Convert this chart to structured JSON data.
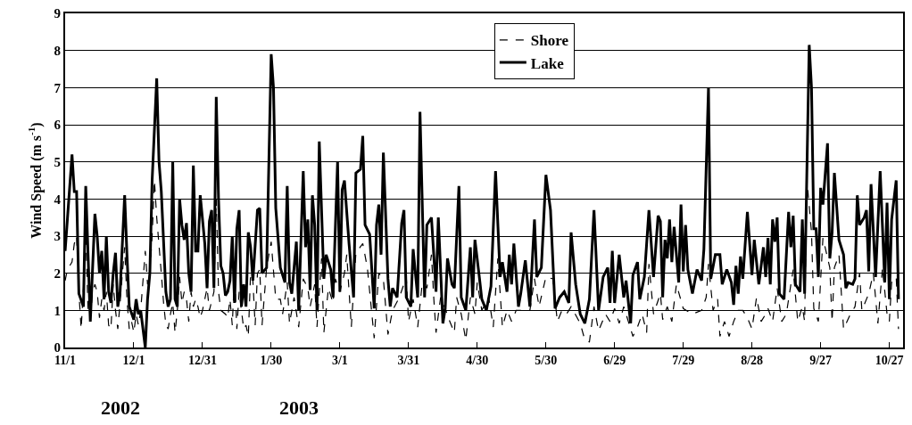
{
  "chart_data": {
    "type": "line",
    "ylabel": "Wind Speed (m s$^{-1}$)",
    "xlim": [
      "2002-11-01",
      "2003-11-02"
    ],
    "xticks": [
      {
        "value": "2002-11-01",
        "label": "11/1"
      },
      {
        "value": "2002-12-01",
        "label": "12/1"
      },
      {
        "value": "2002-12-31",
        "label": "12/31"
      },
      {
        "value": "2003-01-30",
        "label": "1/30"
      },
      {
        "value": "2003-03-01",
        "label": "3/1"
      },
      {
        "value": "2003-03-31",
        "label": "3/31"
      },
      {
        "value": "2003-04-30",
        "label": "4/30"
      },
      {
        "value": "2003-05-30",
        "label": "5/30"
      },
      {
        "value": "2003-06-29",
        "label": "6/29"
      },
      {
        "value": "2003-07-29",
        "label": "7/29"
      },
      {
        "value": "2003-08-28",
        "label": "8/28"
      },
      {
        "value": "2003-09-27",
        "label": "9/27"
      },
      {
        "value": "2003-10-27",
        "label": "10/27"
      }
    ],
    "ylim": [
      0,
      9
    ],
    "yticks": [
      0,
      1,
      2,
      3,
      4,
      5,
      6,
      7,
      8,
      9
    ],
    "grid": "y",
    "legend": "top",
    "marker": "none",
    "annotations": [
      "2002",
      "2003"
    ],
    "series": [
      {
        "name": "Shore",
        "color": "#000000",
        "line_style": "dashed",
        "x": [
          "2002-11-01",
          "2002-11-02",
          "2002-11-04",
          "2002-11-05",
          "2002-11-06",
          "2002-11-07",
          "2002-11-08",
          "2002-11-09",
          "2002-11-10",
          "2002-11-11",
          "2002-11-12",
          "2002-11-13",
          "2002-11-14",
          "2002-11-15",
          "2002-11-16",
          "2002-11-17",
          "2002-11-18",
          "2002-11-19",
          "2002-11-20",
          "2002-11-21",
          "2002-11-22",
          "2002-11-23",
          "2002-11-24",
          "2002-11-25",
          "2002-11-26",
          "2002-11-27",
          "2002-11-28",
          "2002-11-29",
          "2002-11-30",
          "2002-12-01",
          "2002-12-02",
          "2002-12-03",
          "2002-12-04",
          "2002-12-06",
          "2002-12-07",
          "2002-12-08",
          "2002-12-09",
          "2002-12-10",
          "2002-12-11",
          "2002-12-13",
          "2002-12-14",
          "2002-12-15",
          "2002-12-16",
          "2002-12-17",
          "2002-12-18",
          "2002-12-19",
          "2002-12-20",
          "2002-12-21",
          "2002-12-22",
          "2002-12-23",
          "2002-12-24",
          "2002-12-25",
          "2002-12-26",
          "2002-12-27",
          "2002-12-28",
          "2002-12-29",
          "2002-12-30",
          "2002-12-31",
          "2003-01-01",
          "2003-01-02",
          "2003-01-03",
          "2003-01-05",
          "2003-01-06",
          "2003-01-07",
          "2003-01-08",
          "2003-01-10",
          "2003-01-11",
          "2003-01-12",
          "2003-01-13",
          "2003-01-14",
          "2003-01-15",
          "2003-01-16",
          "2003-01-17",
          "2003-01-18",
          "2003-01-19",
          "2003-01-20",
          "2003-01-21",
          "2003-01-22",
          "2003-01-23",
          "2003-01-24",
          "2003-01-25",
          "2003-01-26",
          "2003-01-28",
          "2003-01-30",
          "2003-02-01",
          "2003-02-03",
          "2003-02-04",
          "2003-02-06",
          "2003-02-07",
          "2003-02-09",
          "2003-02-11",
          "2003-02-13",
          "2003-02-15",
          "2003-02-16",
          "2003-02-18",
          "2003-02-19",
          "2003-02-21",
          "2003-02-22",
          "2003-02-24",
          "2003-02-26",
          "2003-02-27",
          "2003-03-01",
          "2003-03-03",
          "2003-03-04",
          "2003-03-06",
          "2003-03-08",
          "2003-03-11",
          "2003-03-13",
          "2003-03-16",
          "2003-03-18",
          "2003-03-20",
          "2003-03-22",
          "2003-03-24",
          "2003-03-27",
          "2003-03-30",
          "2003-03-31",
          "2003-04-02",
          "2003-04-04",
          "2003-04-06",
          "2003-04-08",
          "2003-04-10",
          "2003-04-11",
          "2003-04-12",
          "2003-04-14",
          "2003-04-16",
          "2003-04-18",
          "2003-04-20",
          "2003-04-21",
          "2003-04-23",
          "2003-04-25",
          "2003-04-27",
          "2003-04-29",
          "2003-04-30",
          "2003-05-02",
          "2003-05-05",
          "2003-05-07",
          "2003-05-09",
          "2003-05-11",
          "2003-05-13",
          "2003-05-15",
          "2003-05-17",
          "2003-05-19",
          "2003-05-23",
          "2003-05-25",
          "2003-05-27",
          "2003-05-30",
          "2003-06-02",
          "2003-06-04",
          "2003-06-06",
          "2003-06-08",
          "2003-06-10",
          "2003-06-14",
          "2003-06-16",
          "2003-06-18",
          "2003-06-20",
          "2003-06-22",
          "2003-06-25",
          "2003-06-27",
          "2003-06-29",
          "2003-07-01",
          "2003-07-03",
          "2003-07-05",
          "2003-07-07",
          "2003-07-09",
          "2003-07-11",
          "2003-07-13",
          "2003-07-14",
          "2003-07-16",
          "2003-07-19",
          "2003-07-20",
          "2003-07-22",
          "2003-07-24",
          "2003-07-26",
          "2003-07-29",
          "2003-08-02",
          "2003-08-06",
          "2003-08-08",
          "2003-08-09",
          "2003-08-11",
          "2003-08-13",
          "2003-08-14",
          "2003-08-16",
          "2003-08-18",
          "2003-08-20",
          "2003-08-22",
          "2003-08-24",
          "2003-08-26",
          "2003-08-28",
          "2003-08-30",
          "2003-09-01",
          "2003-09-03",
          "2003-09-04",
          "2003-09-06",
          "2003-09-08",
          "2003-09-10",
          "2003-09-12",
          "2003-09-15",
          "2003-09-17",
          "2003-09-19",
          "2003-09-20",
          "2003-09-21",
          "2003-09-23",
          "2003-09-24",
          "2003-09-26",
          "2003-09-28",
          "2003-10-01",
          "2003-10-02",
          "2003-10-03",
          "2003-10-05",
          "2003-10-07",
          "2003-10-10",
          "2003-10-12",
          "2003-10-14",
          "2003-10-15",
          "2003-10-18",
          "2003-10-20",
          "2003-10-22",
          "2003-10-24",
          "2003-10-26",
          "2003-10-27",
          "2003-10-28",
          "2003-10-30",
          "2003-10-31"
        ],
        "values": [
          1.8,
          2.1,
          2.3,
          2.8,
          3.0,
          1.5,
          0.5,
          1.6,
          3.1,
          1.0,
          0.8,
          1.5,
          1.7,
          1.5,
          0.8,
          1.3,
          1.0,
          1.5,
          0.6,
          0.5,
          1.7,
          1.0,
          0.5,
          1.2,
          2.0,
          2.7,
          1.3,
          0.5,
          0.7,
          0.4,
          0.9,
          0.6,
          1.0,
          2.6,
          1.7,
          2.0,
          3.0,
          4.5,
          3.5,
          2.0,
          1.2,
          0.6,
          0.5,
          0.9,
          1.2,
          0.4,
          1.0,
          1.9,
          1.2,
          1.5,
          1.3,
          0.7,
          1.5,
          1.1,
          1.3,
          1.1,
          0.8,
          1.0,
          1.3,
          1.6,
          1.0,
          1.5,
          4.0,
          1.5,
          1.0,
          0.9,
          0.8,
          1.3,
          0.6,
          2.0,
          0.5,
          1.5,
          1.0,
          0.5,
          0.6,
          0.3,
          2.0,
          1.8,
          0.6,
          2.0,
          2.1,
          0.6,
          2.15,
          2.85,
          1.3,
          1.3,
          0.9,
          1.75,
          0.65,
          1.35,
          0.55,
          1.85,
          1.6,
          1.1,
          1.7,
          0.55,
          2.4,
          0.4,
          1.6,
          1.2,
          1.85,
          1.5,
          2.0,
          2.5,
          0.55,
          2.55,
          2.8,
          2.15,
          0.25,
          2.0,
          1.85,
          0.35,
          1.0,
          1.35,
          1.9,
          0.7,
          1.3,
          0.55,
          1.75,
          1.6,
          2.5,
          1.35,
          0.4,
          1.35,
          1.05,
          0.7,
          0.4,
          1.35,
          0.9,
          0.2,
          1.35,
          0.9,
          1.75,
          1.0,
          1.35,
          0.55,
          2.4,
          0.55,
          1.0,
          0.7,
          1.0,
          1.0,
          1.0,
          1.85,
          1.1,
          1.9,
          1.85,
          0.7,
          1.0,
          0.9,
          1.1,
          0.65,
          0.2,
          0.15,
          1.1,
          0.45,
          0.9,
          0.7,
          1.05,
          0.65,
          1.1,
          0.7,
          0.3,
          0.55,
          0.9,
          0.4,
          2.25,
          0.9,
          1.45,
          0.75,
          1.1,
          0.7,
          1.7,
          1.05,
          0.9,
          1.0,
          1.35,
          2.25,
          1.0,
          1.3,
          0.3,
          0.7,
          0.3,
          0.7,
          1.0,
          1.0,
          0.8,
          0.5,
          1.35,
          0.7,
          0.9,
          1.05,
          0.7,
          1.6,
          0.7,
          0.9,
          2.1,
          0.7,
          1.1,
          0.7,
          4.5,
          3.1,
          1.05,
          0.7,
          2.95,
          2.15,
          0.7,
          2.15,
          2.5,
          0.5,
          0.9,
          1.1,
          2.0,
          1.0,
          1.45,
          2.0,
          0.65,
          2.15,
          0.9,
          0.7,
          1.75,
          1.9,
          0.5
        ]
      },
      {
        "name": "Lake",
        "color": "#000000",
        "line_style": "solid",
        "x": [
          "2002-11-01",
          "2002-11-04",
          "2002-11-05",
          "2002-11-06",
          "2002-11-07",
          "2002-11-09",
          "2002-11-10",
          "2002-11-12",
          "2002-11-14",
          "2002-11-15",
          "2002-11-16",
          "2002-11-17",
          "2002-11-18",
          "2002-11-19",
          "2002-11-20",
          "2002-11-21",
          "2002-11-22",
          "2002-11-23",
          "2002-11-24",
          "2002-11-25",
          "2002-11-27",
          "2002-11-28",
          "2002-11-29",
          "2002-12-01",
          "2002-12-02",
          "2002-12-03",
          "2002-12-04",
          "2002-12-06",
          "2002-12-07",
          "2002-12-08",
          "2002-12-09",
          "2002-12-11",
          "2002-12-12",
          "2002-12-13",
          "2002-12-15",
          "2002-12-16",
          "2002-12-17",
          "2002-12-18",
          "2002-12-19",
          "2002-12-20",
          "2002-12-21",
          "2002-12-22",
          "2002-12-23",
          "2002-12-24",
          "2002-12-25",
          "2002-12-26",
          "2002-12-27",
          "2002-12-28",
          "2002-12-29",
          "2002-12-30",
          "2003-01-01",
          "2003-01-02",
          "2003-01-03",
          "2003-01-04",
          "2003-01-05",
          "2003-01-06",
          "2003-01-07",
          "2003-01-08",
          "2003-01-09",
          "2003-01-10",
          "2003-01-11",
          "2003-01-12",
          "2003-01-13",
          "2003-01-14",
          "2003-01-15",
          "2003-01-16",
          "2003-01-17",
          "2003-01-18",
          "2003-01-19",
          "2003-01-20",
          "2003-01-21",
          "2003-01-22",
          "2003-01-24",
          "2003-01-25",
          "2003-01-26",
          "2003-01-28",
          "2003-01-30",
          "2003-01-31",
          "2003-02-01",
          "2003-02-03",
          "2003-02-05",
          "2003-02-06",
          "2003-02-07",
          "2003-02-08",
          "2003-02-10",
          "2003-02-11",
          "2003-02-13",
          "2003-02-14",
          "2003-02-15",
          "2003-02-16",
          "2003-02-17",
          "2003-02-18",
          "2003-02-19",
          "2003-02-20",
          "2003-02-22",
          "2003-02-23",
          "2003-02-25",
          "2003-02-26",
          "2003-02-28",
          "2003-03-01",
          "2003-03-02",
          "2003-03-03",
          "2003-03-05",
          "2003-03-07",
          "2003-03-08",
          "2003-03-10",
          "2003-03-11",
          "2003-03-12",
          "2003-03-14",
          "2003-03-16",
          "2003-03-17",
          "2003-03-18",
          "2003-03-19",
          "2003-03-20",
          "2003-03-22",
          "2003-03-23",
          "2003-03-24",
          "2003-03-26",
          "2003-03-28",
          "2003-03-29",
          "2003-03-30",
          "2003-04-01",
          "2003-04-02",
          "2003-04-04",
          "2003-04-05",
          "2003-04-07",
          "2003-04-08",
          "2003-04-10",
          "2003-04-12",
          "2003-04-13",
          "2003-04-15",
          "2003-04-16",
          "2003-04-17",
          "2003-04-19",
          "2003-04-20",
          "2003-04-22",
          "2003-04-23",
          "2003-04-25",
          "2003-04-27",
          "2003-04-28",
          "2003-04-29",
          "2003-05-01",
          "2003-05-02",
          "2003-05-04",
          "2003-05-06",
          "2003-05-08",
          "2003-05-10",
          "2003-05-11",
          "2003-05-13",
          "2003-05-14",
          "2003-05-15",
          "2003-05-16",
          "2003-05-18",
          "2003-05-19",
          "2003-05-21",
          "2003-05-23",
          "2003-05-25",
          "2003-05-26",
          "2003-05-28",
          "2003-05-30",
          "2003-06-01",
          "2003-06-03",
          "2003-06-05",
          "2003-06-07",
          "2003-06-09",
          "2003-06-10",
          "2003-06-12",
          "2003-06-14",
          "2003-06-16",
          "2003-06-18",
          "2003-06-20",
          "2003-06-22",
          "2003-06-24",
          "2003-06-26",
          "2003-06-27",
          "2003-06-28",
          "2003-06-29",
          "2003-07-01",
          "2003-07-03",
          "2003-07-04",
          "2003-07-06",
          "2003-07-07",
          "2003-07-09",
          "2003-07-10",
          "2003-07-12",
          "2003-07-14",
          "2003-07-16",
          "2003-07-18",
          "2003-07-19",
          "2003-07-20",
          "2003-07-21",
          "2003-07-22",
          "2003-07-23",
          "2003-07-24",
          "2003-07-25",
          "2003-07-27",
          "2003-07-28",
          "2003-07-29",
          "2003-07-30",
          "2003-07-31",
          "2003-08-02",
          "2003-08-04",
          "2003-08-06",
          "2003-08-07",
          "2003-08-09",
          "2003-08-10",
          "2003-08-12",
          "2003-08-14",
          "2003-08-15",
          "2003-08-17",
          "2003-08-19",
          "2003-08-20",
          "2003-08-21",
          "2003-08-22",
          "2003-08-23",
          "2003-08-24",
          "2003-08-26",
          "2003-08-28",
          "2003-08-29",
          "2003-08-30",
          "2003-08-31",
          "2003-09-02",
          "2003-09-03",
          "2003-09-04",
          "2003-09-05",
          "2003-09-06",
          "2003-09-07",
          "2003-09-08",
          "2003-09-09",
          "2003-09-11",
          "2003-09-13",
          "2003-09-14",
          "2003-09-15",
          "2003-09-16",
          "2003-09-18",
          "2003-09-19",
          "2003-09-20",
          "2003-09-22",
          "2003-09-23",
          "2003-09-24",
          "2003-09-25",
          "2003-09-26",
          "2003-09-27",
          "2003-09-28",
          "2003-09-30",
          "2003-10-01",
          "2003-10-02",
          "2003-10-03",
          "2003-10-05",
          "2003-10-07",
          "2003-10-08",
          "2003-10-09",
          "2003-10-11",
          "2003-10-12",
          "2003-10-13",
          "2003-10-14",
          "2003-10-16",
          "2003-10-17",
          "2003-10-18",
          "2003-10-19",
          "2003-10-21",
          "2003-10-23",
          "2003-10-25",
          "2003-10-26",
          "2003-10-27",
          "2003-10-28",
          "2003-10-30",
          "2003-10-31"
        ],
        "values": [
          2.6,
          5.2,
          4.2,
          4.2,
          1.45,
          1.1,
          4.35,
          0.7,
          3.6,
          3.0,
          2.0,
          2.6,
          1.3,
          3.0,
          1.5,
          1.2,
          2.0,
          2.55,
          1.1,
          1.5,
          4.1,
          2.5,
          1.1,
          0.75,
          1.3,
          0.9,
          1.0,
          0,
          1.3,
          2.0,
          4.5,
          7.25,
          5.0,
          4.2,
          1.5,
          1.1,
          1.3,
          5.0,
          1.3,
          1.1,
          4.0,
          3.3,
          2.9,
          3.35,
          2.0,
          1.5,
          4.9,
          2.6,
          2.6,
          4.1,
          2.8,
          1.6,
          3.4,
          3.7,
          1.6,
          6.75,
          4.0,
          2.2,
          2.0,
          1.4,
          1.5,
          1.8,
          3.0,
          1.2,
          3.2,
          3.7,
          1.1,
          1.7,
          1.1,
          3.1,
          2.7,
          1.8,
          3.7,
          3.75,
          2.0,
          2.15,
          7.9,
          7.0,
          3.75,
          2.15,
          1.75,
          4.35,
          1.75,
          1.45,
          2.85,
          1.0,
          4.75,
          2.7,
          3.45,
          1.55,
          4.1,
          3.3,
          1.0,
          5.55,
          1.85,
          2.5,
          2.1,
          1.35,
          5.0,
          1.5,
          4.25,
          4.5,
          2.8,
          1.35,
          4.7,
          4.8,
          5.7,
          3.3,
          3.05,
          1.05,
          3.3,
          3.85,
          2.5,
          5.25,
          1.85,
          1.1,
          1.6,
          1.35,
          3.35,
          3.7,
          1.35,
          1.1,
          2.65,
          1.35,
          6.35,
          1.35,
          3.3,
          3.5,
          1.5,
          3.5,
          0.65,
          1.05,
          2.4,
          1.7,
          1.6,
          4.35,
          1.35,
          1.0,
          2.7,
          1.35,
          2.9,
          1.85,
          1.3,
          1.0,
          1.65,
          4.75,
          1.9,
          2.3,
          1.5,
          2.5,
          1.7,
          2.8,
          1.1,
          1.45,
          2.35,
          1.1,
          3.45,
          1.9,
          2.15,
          4.65,
          3.7,
          1.05,
          1.35,
          1.5,
          1.2,
          3.1,
          1.7,
          0.9,
          0.65,
          1.3,
          3.7,
          1.0,
          1.9,
          2.15,
          1.2,
          2.6,
          1.2,
          2.5,
          1.35,
          1.8,
          0.65,
          1.95,
          2.3,
          1.3,
          1.9,
          3.7,
          1.9,
          3.55,
          3.4,
          1.35,
          2.9,
          2.4,
          3.45,
          2.3,
          3.25,
          1.75,
          3.85,
          2.05,
          3.3,
          2.1,
          1.45,
          2.1,
          1.8,
          2.65,
          7.0,
          1.85,
          2.5,
          2.5,
          1.7,
          2.1,
          1.75,
          1.15,
          2.2,
          1.45,
          2.45,
          1.85,
          3.65,
          1.95,
          2.9,
          2.3,
          1.7,
          2.7,
          1.9,
          2.95,
          1.7,
          3.45,
          2.85,
          3.5,
          1.45,
          1.3,
          3.65,
          2.7,
          3.55,
          1.7,
          1.5,
          3.45,
          1.45,
          8.15,
          7.0,
          3.2,
          3.2,
          1.9,
          4.3,
          3.85,
          5.5,
          2.4,
          3.1,
          4.7,
          2.9,
          2.5,
          1.6,
          1.75,
          1.7,
          1.85,
          4.1,
          3.3,
          3.5,
          3.7,
          2.05,
          4.4,
          1.9,
          4.75,
          1.75,
          3.9,
          1.3,
          3.45,
          4.5,
          1.3
        ]
      }
    ]
  }
}
